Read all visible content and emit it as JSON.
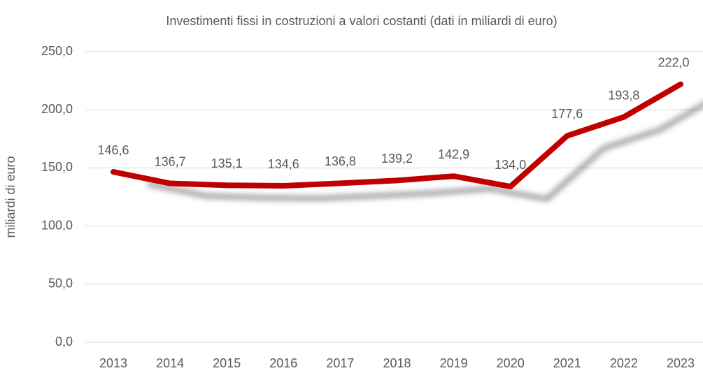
{
  "chart_data": {
    "type": "line",
    "title": "Investimenti fissi in costruzioni a valori costanti (dati in miliardi di euro)",
    "y_label": "miliardi di euro",
    "categories": [
      "2013",
      "2014",
      "2015",
      "2016",
      "2017",
      "2018",
      "2019",
      "2020",
      "2021",
      "2022",
      "2023"
    ],
    "series": [
      {
        "name": "Investimenti fissi in costruzioni",
        "color": "#c00000",
        "values": [
          146.6,
          136.7,
          135.1,
          134.6,
          136.8,
          139.2,
          142.9,
          134.0,
          177.6,
          193.8,
          222.0
        ],
        "value_labels": [
          "146,6",
          "136,7",
          "135,1",
          "134,6",
          "136,8",
          "139,2",
          "142,9",
          "134,0",
          "177,6",
          "193,8",
          "222,0"
        ]
      }
    ],
    "ylim": [
      0,
      250
    ],
    "yticks": [
      {
        "value": 0,
        "label": "0,0"
      },
      {
        "value": 50,
        "label": "50,0"
      },
      {
        "value": 100,
        "label": "100,0"
      },
      {
        "value": 150,
        "label": "150,0"
      },
      {
        "value": 200,
        "label": "200,0"
      },
      {
        "value": 250,
        "label": "250,0"
      }
    ],
    "grid": true
  }
}
